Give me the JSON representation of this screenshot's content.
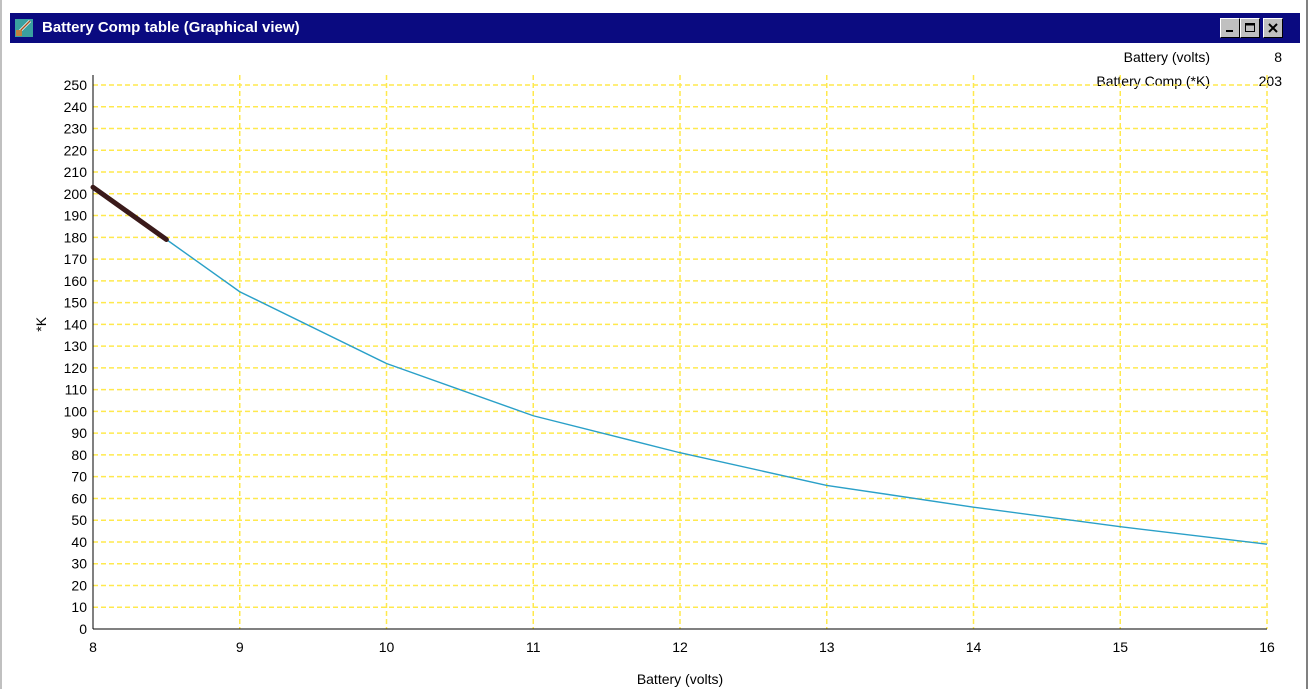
{
  "window": {
    "title": "Battery Comp table (Graphical view)"
  },
  "readout": {
    "x_label": "Battery (volts)",
    "x_value": "8",
    "y_label": "Battery Comp (*K)",
    "y_value": "203"
  },
  "colors": {
    "titlebar": "#0a0a80",
    "grid": "#ffe94d",
    "curve": "#2aa0c8",
    "selection": "#3a1a1a"
  },
  "icons": {
    "app": "battery-table-icon",
    "minimize": "minimize-icon",
    "maximize": "maximize-icon",
    "close": "close-icon"
  },
  "chart_data": {
    "type": "line",
    "xlabel": "Battery (volts)",
    "ylabel": "*K",
    "xlim": [
      8,
      16
    ],
    "ylim": [
      0,
      250
    ],
    "x_ticks": [
      8,
      9,
      10,
      11,
      12,
      13,
      14,
      15,
      16
    ],
    "y_ticks": [
      0,
      10,
      20,
      30,
      40,
      50,
      60,
      70,
      80,
      90,
      100,
      110,
      120,
      130,
      140,
      150,
      160,
      170,
      180,
      190,
      200,
      210,
      220,
      230,
      240,
      250
    ],
    "grid": true,
    "series": [
      {
        "x": [
          8,
          8.5,
          9,
          10,
          11,
          12,
          13,
          14,
          15,
          16
        ],
        "y": [
          203,
          179,
          155,
          122,
          98,
          81,
          66,
          56,
          47,
          39
        ]
      }
    ],
    "selected_range": {
      "x": [
        8,
        8.5
      ],
      "y": [
        203,
        179
      ]
    }
  }
}
